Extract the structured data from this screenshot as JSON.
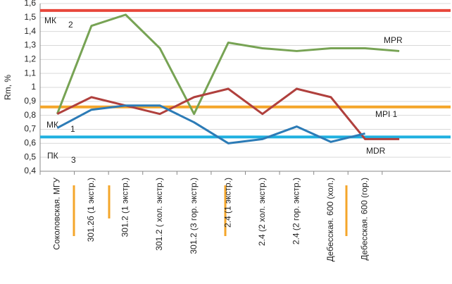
{
  "chart_data": {
    "type": "line",
    "y_label": "Rm, %",
    "categories": [
      "Соколовская. МГУ",
      "301.2б (1 экстр.)",
      "301.2 (1 экстр.)",
      "301.2 ( хол. экстр.)",
      "301.2 (3 гор. экстр.)",
      "2.4 (1 экстр.)",
      "2.4 (2 хол. экстр.)",
      "2.4 (2 гор. экстр.)",
      "Дебесская. 600 (хол.)",
      "Дебесская. 600 (гор.)",
      null
    ],
    "series": [
      {
        "name": "MPR",
        "color": "#77a354",
        "values": [
          0.81,
          1.44,
          1.52,
          1.28,
          0.81,
          1.32,
          1.28,
          1.26,
          1.28,
          1.28,
          1.26
        ]
      },
      {
        "name": "MPI 1",
        "color": "#b0403d",
        "values": [
          0.81,
          0.93,
          0.87,
          0.81,
          0.93,
          0.99,
          0.81,
          0.99,
          0.93,
          0.63,
          0.63
        ]
      },
      {
        "name": "MDR",
        "color": "#2c7bb6",
        "values": [
          0.71,
          0.84,
          0.87,
          0.87,
          0.75,
          0.6,
          0.63,
          0.72,
          0.61,
          0.67,
          null
        ]
      }
    ],
    "reference_lines": [
      {
        "label": "МК",
        "sub": "2",
        "value": 1.55,
        "color": "#e8473b"
      },
      {
        "label": "МК",
        "sub": "1",
        "value": 0.86,
        "color": "#f4a62a"
      },
      {
        "label": "ПК",
        "sub": "3",
        "value": 0.645,
        "color": "#1fb0e0"
      }
    ],
    "ylim": [
      0.4,
      1.6
    ],
    "yticks": [
      {
        "value": 0.4,
        "label": "0,4"
      },
      {
        "value": 0.5,
        "label": "0,5"
      },
      {
        "value": 0.6,
        "label": "0,6"
      },
      {
        "value": 0.7,
        "label": "0,7"
      },
      {
        "value": 0.8,
        "label": "0,8"
      },
      {
        "value": 0.9,
        "label": "0,9"
      },
      1,
      {
        "value": 1.1,
        "label": "1,1"
      },
      {
        "value": 1.2,
        "label": "1,2"
      },
      {
        "value": 1.3,
        "label": "1,3"
      },
      {
        "value": 1.4,
        "label": "1,4"
      },
      {
        "value": 1.5,
        "label": "1,5"
      },
      {
        "value": 1.6,
        "label": "1,6"
      }
    ],
    "grid": true
  }
}
